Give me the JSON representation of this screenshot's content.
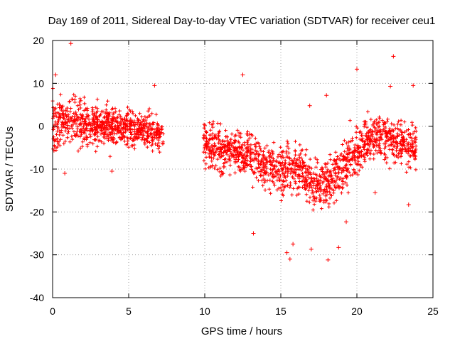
{
  "chart_data": {
    "type": "scatter",
    "title": "Day 169 of 2011, Sidereal Day-to-day VTEC variation (SDTVAR) for receiver ceu1",
    "xlabel": "GPS time / hours",
    "ylabel": "SDTVAR / TECUs",
    "xlim": [
      0,
      25
    ],
    "ylim": [
      -40,
      20
    ],
    "xticks": [
      0,
      5,
      10,
      15,
      20,
      25
    ],
    "yticks": [
      -40,
      -30,
      -20,
      -10,
      0,
      10,
      20
    ],
    "grid": true,
    "marker": "+",
    "series": [
      {
        "name": "SDTVAR",
        "color": "#ff0000",
        "gaps": [
          [
            7.3,
            9.9
          ]
        ],
        "x_range": [
          0.0,
          23.9
        ],
        "trend": [
          {
            "x": 0.0,
            "mean": 0.0,
            "spread": 5.5
          },
          {
            "x": 1.0,
            "mean": 1.5,
            "spread": 5.0
          },
          {
            "x": 2.0,
            "mean": 0.8,
            "spread": 4.5
          },
          {
            "x": 3.0,
            "mean": 0.3,
            "spread": 4.0
          },
          {
            "x": 4.0,
            "mean": -0.3,
            "spread": 3.8
          },
          {
            "x": 5.0,
            "mean": -0.8,
            "spread": 3.8
          },
          {
            "x": 6.0,
            "mean": -1.0,
            "spread": 3.5
          },
          {
            "x": 7.2,
            "mean": -2.0,
            "spread": 3.0
          },
          {
            "x": 10.0,
            "mean": -4.0,
            "spread": 4.5
          },
          {
            "x": 11.0,
            "mean": -5.0,
            "spread": 4.5
          },
          {
            "x": 12.0,
            "mean": -6.0,
            "spread": 4.5
          },
          {
            "x": 13.0,
            "mean": -7.0,
            "spread": 4.5
          },
          {
            "x": 14.0,
            "mean": -9.0,
            "spread": 4.5
          },
          {
            "x": 15.0,
            "mean": -10.0,
            "spread": 4.5
          },
          {
            "x": 16.0,
            "mean": -9.0,
            "spread": 4.5
          },
          {
            "x": 17.0,
            "mean": -14.0,
            "spread": 5.0
          },
          {
            "x": 18.0,
            "mean": -13.0,
            "spread": 5.0
          },
          {
            "x": 19.0,
            "mean": -10.0,
            "spread": 5.0
          },
          {
            "x": 20.0,
            "mean": -6.0,
            "spread": 4.5
          },
          {
            "x": 21.0,
            "mean": -2.0,
            "spread": 4.5
          },
          {
            "x": 22.0,
            "mean": -2.5,
            "spread": 4.5
          },
          {
            "x": 23.0,
            "mean": -4.0,
            "spread": 4.5
          },
          {
            "x": 23.9,
            "mean": -5.0,
            "spread": 4.0
          }
        ],
        "outliers": [
          {
            "x": 0.2,
            "y": 12.0
          },
          {
            "x": 1.2,
            "y": 19.3
          },
          {
            "x": 12.5,
            "y": 12.0
          },
          {
            "x": 22.4,
            "y": 16.3
          },
          {
            "x": 20.0,
            "y": 13.3
          },
          {
            "x": 22.2,
            "y": 9.3
          },
          {
            "x": 13.2,
            "y": -25.0
          },
          {
            "x": 15.6,
            "y": -31.0
          },
          {
            "x": 15.8,
            "y": -27.5
          },
          {
            "x": 15.4,
            "y": -29.5
          },
          {
            "x": 17.0,
            "y": -28.7
          },
          {
            "x": 18.1,
            "y": -31.2
          },
          {
            "x": 18.8,
            "y": -28.3
          },
          {
            "x": 18.0,
            "y": 7.2
          },
          {
            "x": 16.9,
            "y": 4.8
          },
          {
            "x": 23.7,
            "y": 9.5
          },
          {
            "x": 6.7,
            "y": 9.5
          },
          {
            "x": 0.8,
            "y": -11.0
          },
          {
            "x": 3.9,
            "y": -10.5
          },
          {
            "x": 23.4,
            "y": -18.3
          },
          {
            "x": 21.2,
            "y": -15.5
          },
          {
            "x": 19.3,
            "y": -22.3
          }
        ]
      }
    ]
  }
}
